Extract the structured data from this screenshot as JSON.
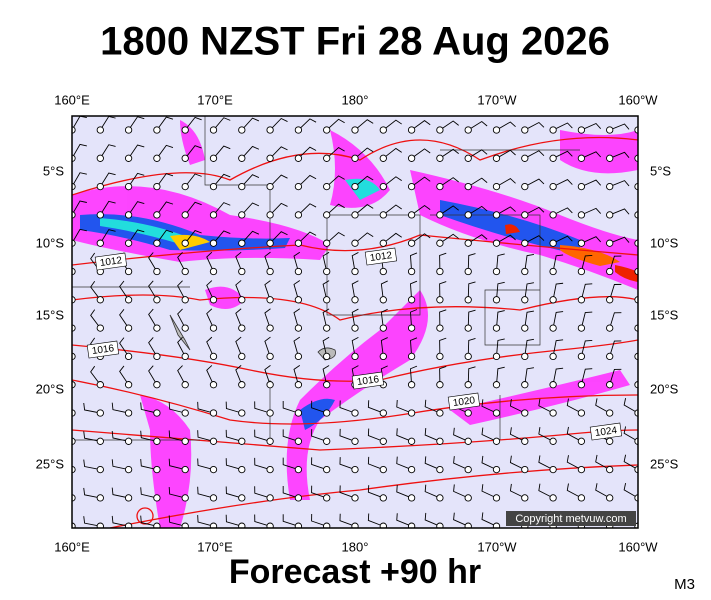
{
  "title": "1800 NZST Fri 28 Aug 2026",
  "footer": "Forecast +90 hr",
  "model": "M3",
  "copyright": "Copyright metvuw.com",
  "lon_labels": [
    "160°E",
    "170°E",
    "180°",
    "170°W",
    "160°W"
  ],
  "lat_labels": [
    "5°S",
    "10°S",
    "15°S",
    "20°S",
    "25°S"
  ],
  "isobar_labels": [
    1012,
    1012,
    1016,
    1016,
    1020,
    1024
  ]
}
